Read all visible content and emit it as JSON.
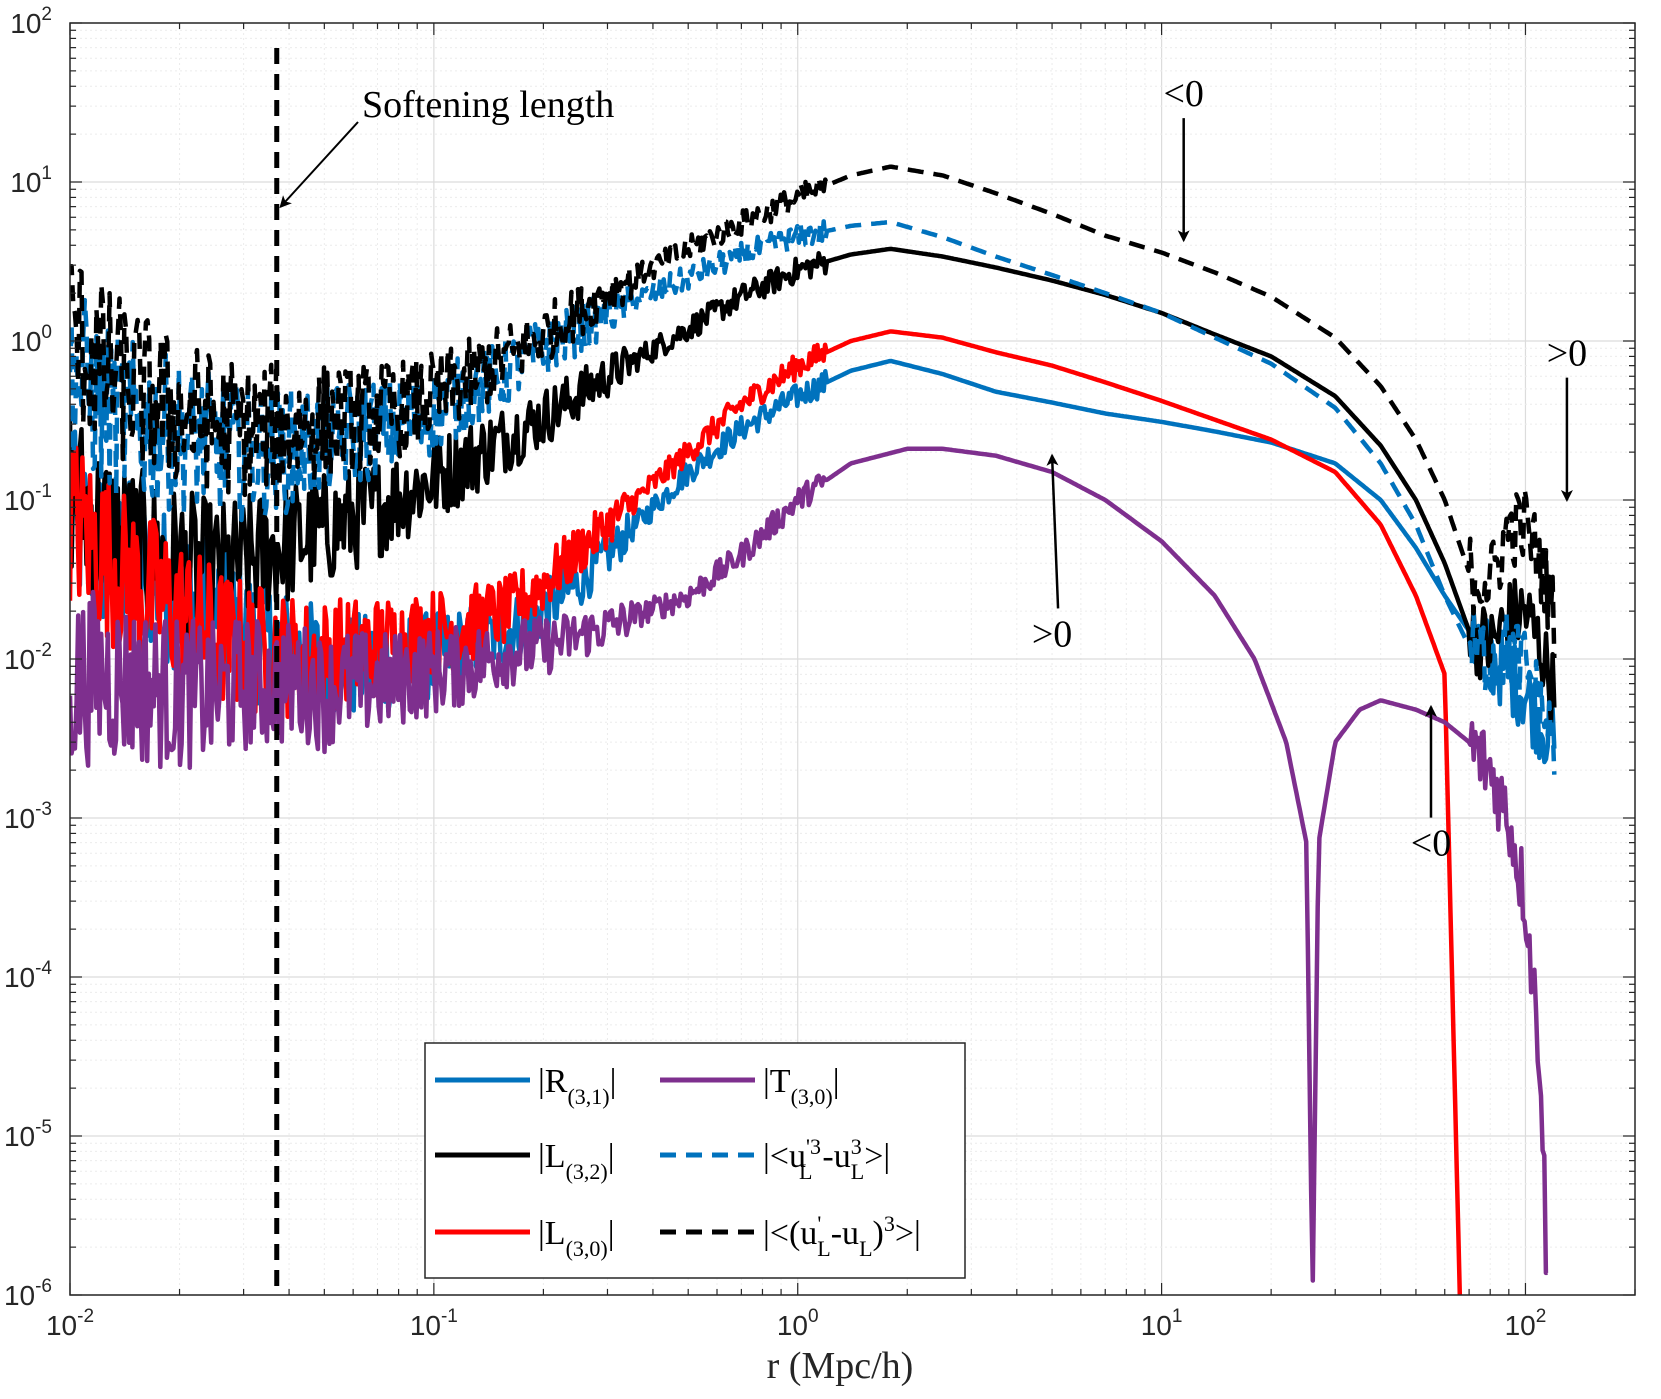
{
  "chart_data": {
    "type": "line",
    "title": "",
    "xlabel": "r (Mpc/h)",
    "ylabel": "",
    "xscale": "log",
    "yscale": "log",
    "xlim": [
      0.01,
      200
    ],
    "ylim": [
      1e-06,
      100
    ],
    "grid": true,
    "minor_grid": true,
    "legend_position": "bottom-center",
    "x_ticks": [
      {
        "base": "10",
        "exp": "-2",
        "value": 0.01
      },
      {
        "base": "10",
        "exp": "-1",
        "value": 0.1
      },
      {
        "base": "10",
        "exp": "0",
        "value": 1
      },
      {
        "base": "10",
        "exp": "1",
        "value": 10
      },
      {
        "base": "10",
        "exp": "2",
        "value": 100
      }
    ],
    "y_ticks": [
      {
        "base": "10",
        "exp": "2",
        "value": 100
      },
      {
        "base": "10",
        "exp": "1",
        "value": 10
      },
      {
        "base": "10",
        "exp": "0",
        "value": 1
      },
      {
        "base": "10",
        "exp": "-1",
        "value": 0.1
      },
      {
        "base": "10",
        "exp": "-2",
        "value": 0.01
      },
      {
        "base": "10",
        "exp": "-3",
        "value": 0.001
      },
      {
        "base": "10",
        "exp": "-4",
        "value": 0.0001
      },
      {
        "base": "10",
        "exp": "-5",
        "value": 1e-05
      },
      {
        "base": "10",
        "exp": "-6",
        "value": 1e-06
      }
    ],
    "softening_length": {
      "label": "Softening length",
      "x": 0.037
    },
    "annotations": [
      {
        "text": "<0",
        "x_text": 11.5,
        "y_text": 30,
        "x_tip": 11.5,
        "y_tip": 4.3
      },
      {
        "text": ">0",
        "x_text": 5.0,
        "y_text": 0.012,
        "x_tip": 5.0,
        "y_tip": 0.19
      },
      {
        "text": "<0",
        "x_text": 55,
        "y_text": 0.00058,
        "x_tip": 55,
        "y_tip": 0.005
      },
      {
        "text": ">0",
        "x_text": 130,
        "y_text": 0.7,
        "x_tip": 130,
        "y_tip": 0.1
      }
    ],
    "series": [
      {
        "name": "R(3,1)",
        "legend_main": "|R",
        "legend_sub": "(3,1)",
        "legend_end": "|",
        "color": "#0072BD",
        "dash": "solid",
        "x": [
          0.01,
          0.012,
          0.015,
          0.02,
          0.025,
          0.03,
          0.037,
          0.045,
          0.055,
          0.07,
          0.09,
          0.12,
          0.16,
          0.2,
          0.25,
          0.3,
          0.4,
          0.5,
          0.7,
          1.0,
          1.4,
          1.8,
          2.5,
          3.5,
          5,
          7,
          10,
          14,
          20,
          30,
          40,
          50,
          60,
          70,
          80,
          90,
          100,
          110,
          120
        ],
        "values": [
          0.08,
          0.05,
          0.04,
          0.025,
          0.02,
          0.015,
          0.012,
          0.01,
          0.009,
          0.009,
          0.01,
          0.012,
          0.015,
          0.02,
          0.03,
          0.045,
          0.09,
          0.15,
          0.28,
          0.45,
          0.65,
          0.75,
          0.62,
          0.48,
          0.41,
          0.35,
          0.31,
          0.27,
          0.23,
          0.17,
          0.1,
          0.05,
          0.025,
          0.015,
          0.01,
          0.008,
          0.006,
          0.004,
          0.003
        ]
      },
      {
        "name": "L(3,2)",
        "legend_main": "|L",
        "legend_sub": "(3,2)",
        "legend_end": "|",
        "color": "#000000",
        "dash": "solid",
        "x": [
          0.01,
          0.012,
          0.015,
          0.02,
          0.025,
          0.03,
          0.037,
          0.045,
          0.055,
          0.07,
          0.09,
          0.12,
          0.16,
          0.2,
          0.3,
          0.5,
          0.7,
          1.0,
          1.4,
          1.8,
          2.5,
          3.5,
          5,
          7,
          10,
          14,
          20,
          30,
          40,
          50,
          60,
          70,
          80,
          90,
          100,
          110,
          120
        ],
        "values": [
          0.12,
          0.07,
          0.05,
          0.04,
          0.035,
          0.04,
          0.05,
          0.06,
          0.07,
          0.09,
          0.12,
          0.17,
          0.25,
          0.33,
          0.6,
          1.2,
          1.9,
          2.8,
          3.5,
          3.8,
          3.4,
          2.9,
          2.4,
          1.95,
          1.5,
          1.1,
          0.8,
          0.45,
          0.22,
          0.1,
          0.04,
          0.015,
          0.012,
          0.018,
          0.02,
          0.012,
          0.006
        ]
      },
      {
        "name": "L(3,0)",
        "legend_main": "|L",
        "legend_sub": "(3,0)",
        "legend_end": "|",
        "color": "#FF0000",
        "dash": "solid",
        "x": [
          0.01,
          0.012,
          0.015,
          0.02,
          0.025,
          0.03,
          0.037,
          0.045,
          0.055,
          0.07,
          0.09,
          0.12,
          0.16,
          0.2,
          0.3,
          0.5,
          0.7,
          1.0,
          1.4,
          1.8,
          2.5,
          3.5,
          5,
          7,
          10,
          14,
          20,
          30,
          40,
          50,
          60,
          66
        ],
        "values": [
          0.08,
          0.05,
          0.03,
          0.02,
          0.014,
          0.012,
          0.011,
          0.01,
          0.011,
          0.012,
          0.014,
          0.016,
          0.02,
          0.03,
          0.07,
          0.2,
          0.4,
          0.7,
          1.0,
          1.15,
          1.05,
          0.85,
          0.7,
          0.55,
          0.42,
          0.32,
          0.24,
          0.15,
          0.07,
          0.025,
          0.008,
          1e-06
        ]
      },
      {
        "name": "T(3,0)",
        "legend_main": "|T",
        "legend_sub": "(3,0)",
        "legend_end": "|",
        "color": "#7E2F8E",
        "dash": "solid",
        "x": [
          0.01,
          0.012,
          0.015,
          0.02,
          0.025,
          0.03,
          0.037,
          0.045,
          0.05,
          0.055,
          0.07,
          0.09,
          0.12,
          0.16,
          0.2,
          0.3,
          0.5,
          0.7,
          1.0,
          1.4,
          2.0,
          2.5,
          3.5,
          5,
          7,
          10,
          14,
          18,
          22,
          25,
          26,
          27,
          30,
          35,
          40,
          50,
          60,
          70,
          80,
          90,
          100,
          110,
          115
        ],
        "values": [
          0.007,
          0.008,
          0.007,
          0.006,
          0.006,
          0.007,
          0.007,
          0.007,
          0.006,
          0.007,
          0.007,
          0.008,
          0.009,
          0.011,
          0.012,
          0.016,
          0.025,
          0.045,
          0.1,
          0.17,
          0.21,
          0.21,
          0.19,
          0.15,
          0.1,
          0.055,
          0.025,
          0.01,
          0.003,
          0.0007,
          1e-06,
          0.0007,
          0.003,
          0.0048,
          0.0055,
          0.0048,
          0.004,
          0.003,
          0.002,
          0.001,
          0.0003,
          3e-05,
          1e-06
        ]
      },
      {
        "name": "<u'^3 - u^3>",
        "legend_html": "|<u_L'^3-u_L^3>|",
        "color": "#0072BD",
        "dash": "dashed",
        "x": [
          0.01,
          0.012,
          0.015,
          0.02,
          0.025,
          0.03,
          0.037,
          0.045,
          0.055,
          0.07,
          0.09,
          0.12,
          0.16,
          0.2,
          0.3,
          0.5,
          0.7,
          1.0,
          1.4,
          1.8,
          2.5,
          3.5,
          5,
          7,
          10,
          14,
          20,
          30,
          40,
          50,
          60,
          70,
          80,
          90,
          100,
          110,
          120
        ],
        "values": [
          0.7,
          0.4,
          0.3,
          0.25,
          0.22,
          0.2,
          0.2,
          0.22,
          0.25,
          0.28,
          0.32,
          0.45,
          0.65,
          0.9,
          1.5,
          2.5,
          3.5,
          4.5,
          5.3,
          5.6,
          4.5,
          3.4,
          2.6,
          2.0,
          1.5,
          1.05,
          0.72,
          0.38,
          0.17,
          0.07,
          0.025,
          0.012,
          0.01,
          0.012,
          0.009,
          0.005,
          0.003
        ]
      },
      {
        "name": "<(u' - u)^3>",
        "legend_html": "|<(u_L'-u_L)^3>|",
        "color": "#000000",
        "dash": "dashed",
        "x": [
          0.01,
          0.012,
          0.015,
          0.02,
          0.025,
          0.03,
          0.037,
          0.045,
          0.055,
          0.07,
          0.09,
          0.12,
          0.16,
          0.2,
          0.3,
          0.5,
          0.7,
          1.0,
          1.4,
          1.8,
          2.5,
          3.5,
          5,
          7,
          10,
          14,
          20,
          30,
          40,
          50,
          60,
          70,
          80,
          90,
          100,
          110,
          120
        ],
        "values": [
          1.2,
          0.7,
          0.5,
          0.35,
          0.3,
          0.28,
          0.28,
          0.3,
          0.32,
          0.35,
          0.4,
          0.55,
          0.8,
          1.1,
          2.0,
          3.8,
          5.5,
          8.0,
          11.0,
          12.5,
          11.0,
          8.5,
          6.3,
          4.6,
          3.6,
          2.7,
          1.9,
          1.05,
          0.52,
          0.24,
          0.1,
          0.035,
          0.03,
          0.065,
          0.07,
          0.04,
          0.018
        ]
      }
    ]
  }
}
